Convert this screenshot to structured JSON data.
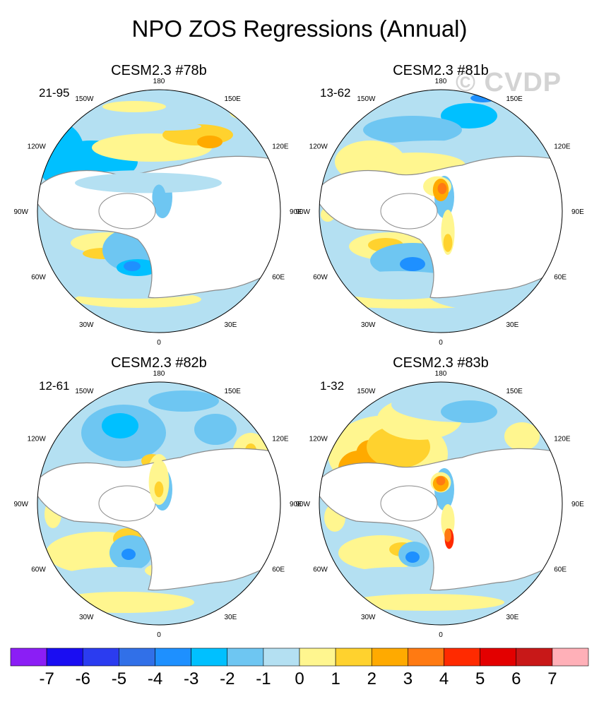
{
  "title": "NPO ZOS Regressions (Annual)",
  "watermark": "© CVDP",
  "longitude_labels": [
    "180",
    "150E",
    "120E",
    "90E",
    "60E",
    "30E",
    "0",
    "30W",
    "60W",
    "90W",
    "120W",
    "150W"
  ],
  "colorbar": {
    "ticks": [
      "-7",
      "-6",
      "-5",
      "-4",
      "-3",
      "-2",
      "-1",
      "0",
      "1",
      "2",
      "3",
      "4",
      "5",
      "6",
      "7"
    ],
    "colors": [
      "#8b1ef5",
      "#1a0df2",
      "#2b3cf0",
      "#3170e8",
      "#1e90ff",
      "#00c0ff",
      "#6ec6f2",
      "#b4e0f2",
      "#fff68f",
      "#ffd22e",
      "#ffaa00",
      "#ff7a12",
      "#ff2a00",
      "#e30000",
      "#c81818",
      "#ffb0b8"
    ]
  },
  "chart_data": [
    {
      "type": "heatmap",
      "title": "CESM2.3 #78b",
      "period": "21-95",
      "projection": "polar stereographic, North Pole",
      "variable": "ZOS regression onto NPO index",
      "value_range": [
        -7,
        7
      ]
    },
    {
      "type": "heatmap",
      "title": "CESM2.3 #81b",
      "period": "13-62",
      "projection": "polar stereographic, North Pole",
      "variable": "ZOS regression onto NPO index",
      "value_range": [
        -7,
        7
      ]
    },
    {
      "type": "heatmap",
      "title": "CESM2.3 #82b",
      "period": "12-61",
      "projection": "polar stereographic, North Pole",
      "variable": "ZOS regression onto NPO index",
      "value_range": [
        -7,
        7
      ]
    },
    {
      "type": "heatmap",
      "title": "CESM2.3 #83b",
      "period": "1-32",
      "projection": "polar stereographic, North Pole",
      "variable": "ZOS regression onto NPO index",
      "value_range": [
        -7,
        7
      ]
    }
  ]
}
